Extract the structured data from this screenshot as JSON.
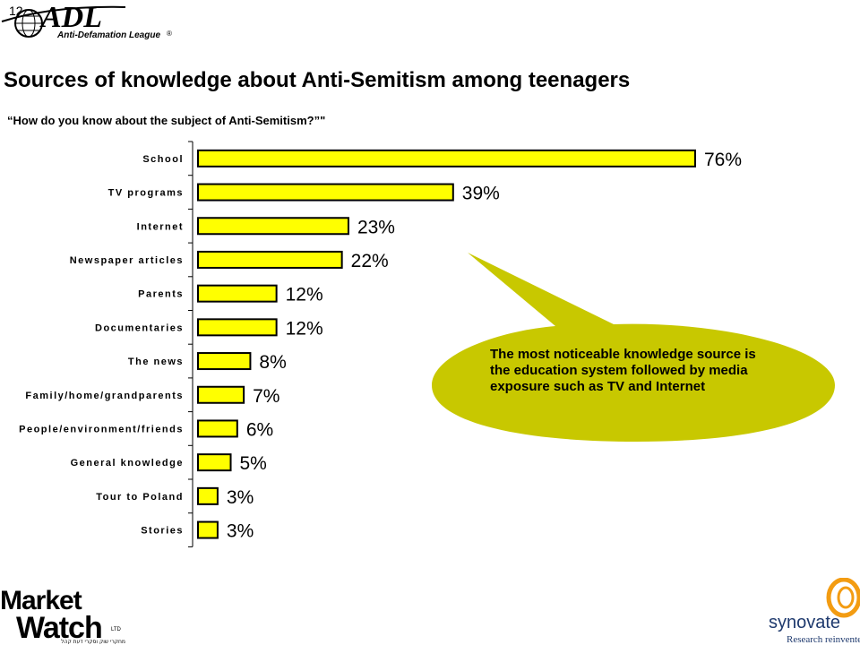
{
  "page_number": "12",
  "logo_adl": {
    "main": "ADL",
    "sub": "Anti-Defamation League",
    "mark": "®"
  },
  "title": "Sources of knowledge about Anti-Semitism among teenagers",
  "subtitle": "“How do you know about the subject of Anti-Semitism?”\"",
  "callout": {
    "text": "The most noticeable knowledge source is the education system followed by media exposure such as TV and Internet",
    "color": "#c8c800"
  },
  "chart_data": {
    "type": "bar",
    "orientation": "horizontal",
    "categories": [
      "School",
      "TV programs",
      "Internet",
      "Newspaper articles",
      "Parents",
      "Documentaries",
      "The news",
      "Family/home/grandparents",
      "People/environment/friends",
      "General knowledge",
      "Tour to Poland",
      "Stories"
    ],
    "values": [
      76,
      39,
      23,
      22,
      12,
      12,
      8,
      7,
      6,
      5,
      3,
      3
    ],
    "value_labels": [
      "76%",
      "39%",
      "23%",
      "22%",
      "12%",
      "12%",
      "8%",
      "7%",
      "6%",
      "5%",
      "3%",
      "3%"
    ],
    "bar_color": "#ffff00",
    "xlim": [
      0,
      80
    ],
    "grid": false,
    "legend": "none"
  },
  "logo_marketwatch": {
    "line1": "Market",
    "line2": "Watch",
    "suffix": "LTD",
    "tagline": "מחקרי שוק וסקרי דעת קהל"
  },
  "logo_synovate": {
    "name": "synovate",
    "tagline": "Research reinvented",
    "accent": "#f39c12"
  }
}
